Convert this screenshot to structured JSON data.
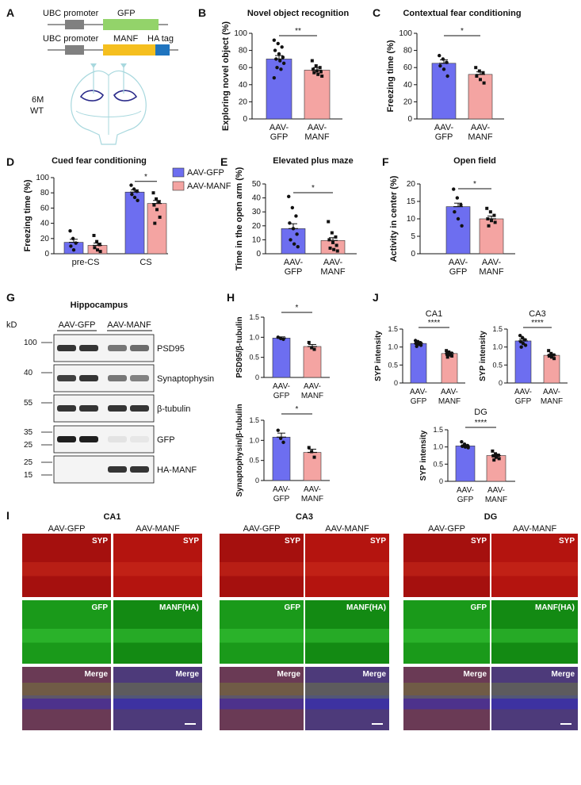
{
  "panel_letters": [
    "A",
    "B",
    "C",
    "D",
    "E",
    "F",
    "G",
    "H",
    "I",
    "J"
  ],
  "colors": {
    "gfp": "#6d6ef0",
    "manf": "#f4a4a2",
    "gfp_construct": "#93d36a",
    "manf_construct": "#f5bf1f",
    "ha_tag": "#1f74bf",
    "promoter": "#808080"
  },
  "panel_a": {
    "construct1": [
      "UBC promoter",
      "GFP"
    ],
    "construct2": [
      "UBC promoter",
      "MANF",
      "HA tag"
    ],
    "mouse_label": [
      "6M",
      "WT"
    ],
    "icon": "brain-section-icon"
  },
  "chart_data": [
    {
      "id": "B",
      "type": "bar",
      "title": "Novel object recognition",
      "ylabel": "Exploring novel object (%)",
      "categories": [
        [
          "AAV-",
          "GFP"
        ],
        [
          "AAV-",
          "MANF"
        ]
      ],
      "values": [
        70,
        57
      ],
      "sem": [
        4,
        3
      ],
      "ylim": [
        0,
        100
      ],
      "yticks": [
        0,
        20,
        40,
        60,
        80,
        100
      ],
      "significance": [
        "**"
      ],
      "points": [
        [
          92,
          88,
          84,
          80,
          76,
          72,
          70,
          68,
          65,
          60,
          58,
          48
        ],
        [
          68,
          62,
          60,
          58,
          56,
          55,
          54,
          52,
          50
        ]
      ]
    },
    {
      "id": "C",
      "type": "bar",
      "title": "Contextual fear conditioning",
      "ylabel": "Freezing time (%)",
      "categories": [
        [
          "AAV-",
          "GFP"
        ],
        [
          "AAV-",
          "MANF"
        ]
      ],
      "values": [
        65,
        52
      ],
      "sem": [
        4,
        3
      ],
      "ylim": [
        0,
        100
      ],
      "yticks": [
        0,
        20,
        40,
        60,
        80,
        100
      ],
      "significance": [
        "*"
      ],
      "points": [
        [
          74,
          70,
          66,
          62,
          58,
          50
        ],
        [
          60,
          56,
          54,
          50,
          46,
          42
        ]
      ]
    },
    {
      "id": "D",
      "type": "bar",
      "title": "Cued fear conditioning",
      "ylabel": "Freezing time (%)",
      "categories": [
        "pre-CS",
        "CS"
      ],
      "series": [
        {
          "name": "AAV-GFP",
          "values": [
            15,
            81
          ],
          "sem": [
            4,
            3
          ]
        },
        {
          "name": "AAV-MANF",
          "values": [
            11,
            66
          ],
          "sem": [
            3,
            4
          ]
        }
      ],
      "ylim": [
        0,
        100
      ],
      "yticks": [
        0,
        20,
        40,
        60,
        80,
        100
      ],
      "legend": "top-right",
      "significance": [
        "*"
      ],
      "points": [
        [
          [
            30,
            20,
            14,
            10,
            5
          ],
          [
            90,
            85,
            82,
            78,
            74,
            70
          ]
        ],
        [
          [
            24,
            16,
            12,
            8,
            5,
            3
          ],
          [
            80,
            72,
            68,
            64,
            58,
            48,
            40
          ]
        ]
      ]
    },
    {
      "id": "E",
      "type": "bar",
      "title": "Elevated plus maze",
      "ylabel": "Time in the open arm (%)",
      "categories": [
        [
          "AAV-",
          "GFP"
        ],
        [
          "AAV-",
          "MANF"
        ]
      ],
      "values": [
        18,
        9.5
      ],
      "sem": [
        3.5,
        2
      ],
      "ylim": [
        0,
        50
      ],
      "yticks": [
        0,
        10,
        20,
        30,
        40,
        50
      ],
      "significance": [
        "*"
      ],
      "points": [
        [
          41,
          33,
          27,
          22,
          18,
          14,
          10,
          7,
          5
        ],
        [
          23,
          15,
          12,
          10,
          8,
          6,
          4,
          3,
          2
        ]
      ]
    },
    {
      "id": "F",
      "type": "bar",
      "title": "Open field",
      "ylabel": "Activity in center (%)",
      "categories": [
        [
          "AAV-",
          "GFP"
        ],
        [
          "AAV-",
          "MANF"
        ]
      ],
      "values": [
        13.5,
        10
      ],
      "sem": [
        1,
        0.8
      ],
      "ylim": [
        0,
        20
      ],
      "yticks": [
        0,
        5,
        10,
        15,
        20
      ],
      "significance": [
        "*"
      ],
      "points": [
        [
          18.5,
          16,
          14,
          12,
          10,
          8
        ],
        [
          13,
          12,
          11,
          10,
          9.5,
          9,
          8
        ]
      ]
    },
    {
      "id": "H1",
      "type": "bar",
      "ylabel": "PSD95/β-tubulin",
      "categories": [
        [
          "AAV-",
          "GFP"
        ],
        [
          "AAV-",
          "MANF"
        ]
      ],
      "values": [
        0.98,
        0.77
      ],
      "sem": [
        0.03,
        0.05
      ],
      "ylim": [
        0,
        1.5
      ],
      "yticks": [
        0,
        0.5,
        1.0,
        1.5
      ],
      "significance": [
        "*"
      ],
      "points": [
        [
          1.0,
          0.97,
          0.95
        ],
        [
          0.87,
          0.74,
          0.7
        ]
      ]
    },
    {
      "id": "H2",
      "type": "bar",
      "ylabel": "Synaptophysin/β-tubulin",
      "categories": [
        [
          "AAV-",
          "GFP"
        ],
        [
          "AAV-",
          "MANF"
        ]
      ],
      "values": [
        1.08,
        0.7
      ],
      "sem": [
        0.1,
        0.08
      ],
      "ylim": [
        0,
        1.5
      ],
      "yticks": [
        0,
        0.5,
        1.0,
        1.5
      ],
      "significance": [
        "*"
      ],
      "points": [
        [
          1.25,
          1.05,
          0.95
        ],
        [
          0.82,
          0.72,
          0.58
        ]
      ]
    },
    {
      "id": "J1",
      "type": "bar",
      "title": "CA1",
      "ylabel": "SYP intensity",
      "categories": [
        [
          "AAV-",
          "GFP"
        ],
        [
          "AAV-",
          "MANF"
        ]
      ],
      "values": [
        1.1,
        0.82
      ],
      "sem": [
        0.03,
        0.03
      ],
      "ylim": [
        0,
        1.5
      ],
      "yticks": [
        0,
        0.5,
        1.0,
        1.5
      ],
      "significance": [
        "****"
      ],
      "points": [
        [
          1.18,
          1.15,
          1.12,
          1.1,
          1.08,
          1.05,
          1.02
        ],
        [
          0.9,
          0.86,
          0.83,
          0.8,
          0.78,
          0.75,
          0.72
        ]
      ]
    },
    {
      "id": "J2",
      "type": "bar",
      "title": "CA3",
      "ylabel": "SYP intensity",
      "categories": [
        [
          "AAV-",
          "GFP"
        ],
        [
          "AAV-",
          "MANF"
        ]
      ],
      "values": [
        1.17,
        0.77
      ],
      "sem": [
        0.05,
        0.03
      ],
      "ylim": [
        0,
        1.5
      ],
      "yticks": [
        0,
        0.5,
        1.0,
        1.5
      ],
      "significance": [
        "****"
      ],
      "points": [
        [
          1.32,
          1.26,
          1.2,
          1.15,
          1.1,
          1.05,
          1.0
        ],
        [
          0.9,
          0.82,
          0.78,
          0.75,
          0.72,
          0.68
        ]
      ]
    },
    {
      "id": "J3",
      "type": "bar",
      "title": "DG",
      "ylabel": "SYP intensity",
      "categories": [
        [
          "AAV-",
          "GFP"
        ],
        [
          "AAV-",
          "MANF"
        ]
      ],
      "values": [
        1.03,
        0.75
      ],
      "sem": [
        0.03,
        0.03
      ],
      "ylim": [
        0,
        1.5
      ],
      "yticks": [
        0,
        0.5,
        1.0,
        1.5
      ],
      "significance": [
        "****"
      ],
      "points": [
        [
          1.15,
          1.08,
          1.04,
          1.02,
          1.0,
          0.98
        ],
        [
          0.88,
          0.8,
          0.76,
          0.74,
          0.7,
          0.66,
          0.62
        ]
      ]
    }
  ],
  "panel_g": {
    "title": "Hippocampus",
    "unit_label": "kD",
    "groups": [
      "AAV-GFP",
      "AAV-MANF"
    ],
    "blots": [
      {
        "label": "PSD95",
        "markers": [
          "100"
        ],
        "intensity": [
          0.85,
          0.85,
          0.55,
          0.6
        ]
      },
      {
        "label": "Synaptophysin",
        "markers": [
          "40"
        ],
        "intensity": [
          0.8,
          0.85,
          0.55,
          0.5
        ]
      },
      {
        "label": "β-tubulin",
        "markers": [
          "55"
        ],
        "intensity": [
          0.85,
          0.85,
          0.85,
          0.85
        ]
      },
      {
        "label": "GFP",
        "markers": [
          "35",
          "25"
        ],
        "intensity": [
          0.95,
          0.95,
          0.06,
          0.04
        ]
      },
      {
        "label": "HA-MANF",
        "markers": [
          "25",
          "15"
        ],
        "intensity": [
          0,
          0,
          0.85,
          0.85
        ]
      }
    ]
  },
  "panel_i": {
    "regions": [
      {
        "name": "CA1",
        "columns": [
          "AAV-GFP",
          "AAV-MANF"
        ],
        "rows": [
          [
            "SYP",
            "SYP"
          ],
          [
            "GFP",
            "MANF(HA)"
          ],
          [
            "Merge",
            "Merge"
          ]
        ]
      },
      {
        "name": "CA3",
        "columns": [
          "AAV-GFP",
          "AAV-MANF"
        ],
        "rows": [
          [
            "SYP",
            "SYP"
          ],
          [
            "GFP",
            "MANF(HA)"
          ],
          [
            "Merge",
            "Merge"
          ]
        ]
      },
      {
        "name": "DG",
        "columns": [
          "AAV-GFP",
          "AAV-MANF"
        ],
        "rows": [
          [
            "SYP",
            "SYP"
          ],
          [
            "GFP",
            "MANF(HA)"
          ],
          [
            "Merge",
            "Merge"
          ]
        ]
      }
    ],
    "channel_colors": {
      "syp": "#b0100e",
      "gfp": "#1d9e1d",
      "merge": "#5a3a6a"
    }
  }
}
